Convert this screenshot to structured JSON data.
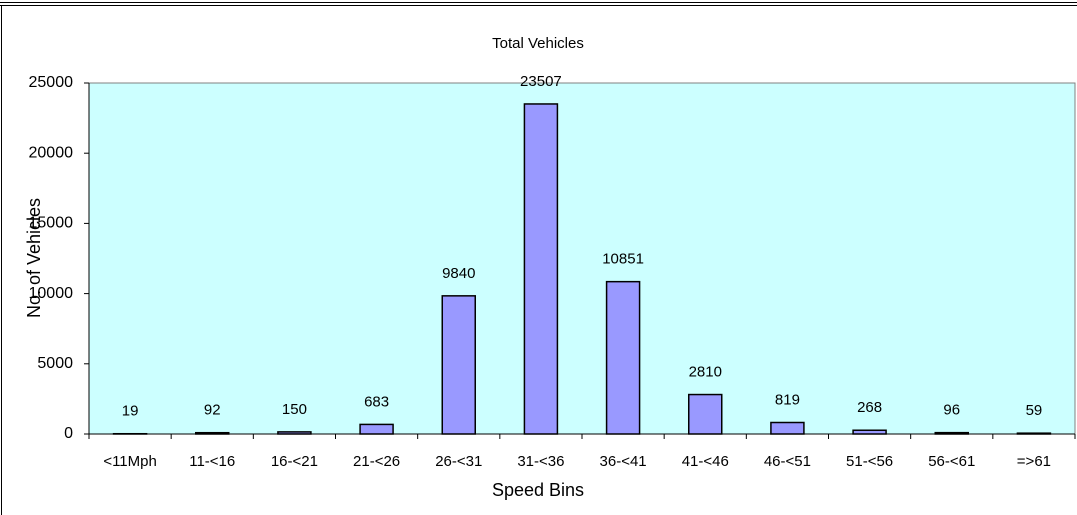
{
  "chart_data": {
    "type": "bar",
    "title": "Total Vehicles",
    "x_label": "Speed Bins",
    "y_label": "No. of Vehicles",
    "categories": [
      "<11Mph",
      "11-<16",
      "16-<21",
      "21-<26",
      "26-<31",
      "31-<36",
      "36-<41",
      "41-<46",
      "46-<51",
      "51-<56",
      "56-<61",
      "=>61"
    ],
    "values": [
      19,
      92,
      150,
      683,
      9840,
      23507,
      10851,
      2810,
      819,
      268,
      96,
      59
    ],
    "color": "#9999ff",
    "plot_background": "#ccffff",
    "ylim": [
      0,
      25000
    ],
    "yticks": [
      0,
      5000,
      10000,
      15000,
      20000,
      25000
    ],
    "grid": false
  }
}
